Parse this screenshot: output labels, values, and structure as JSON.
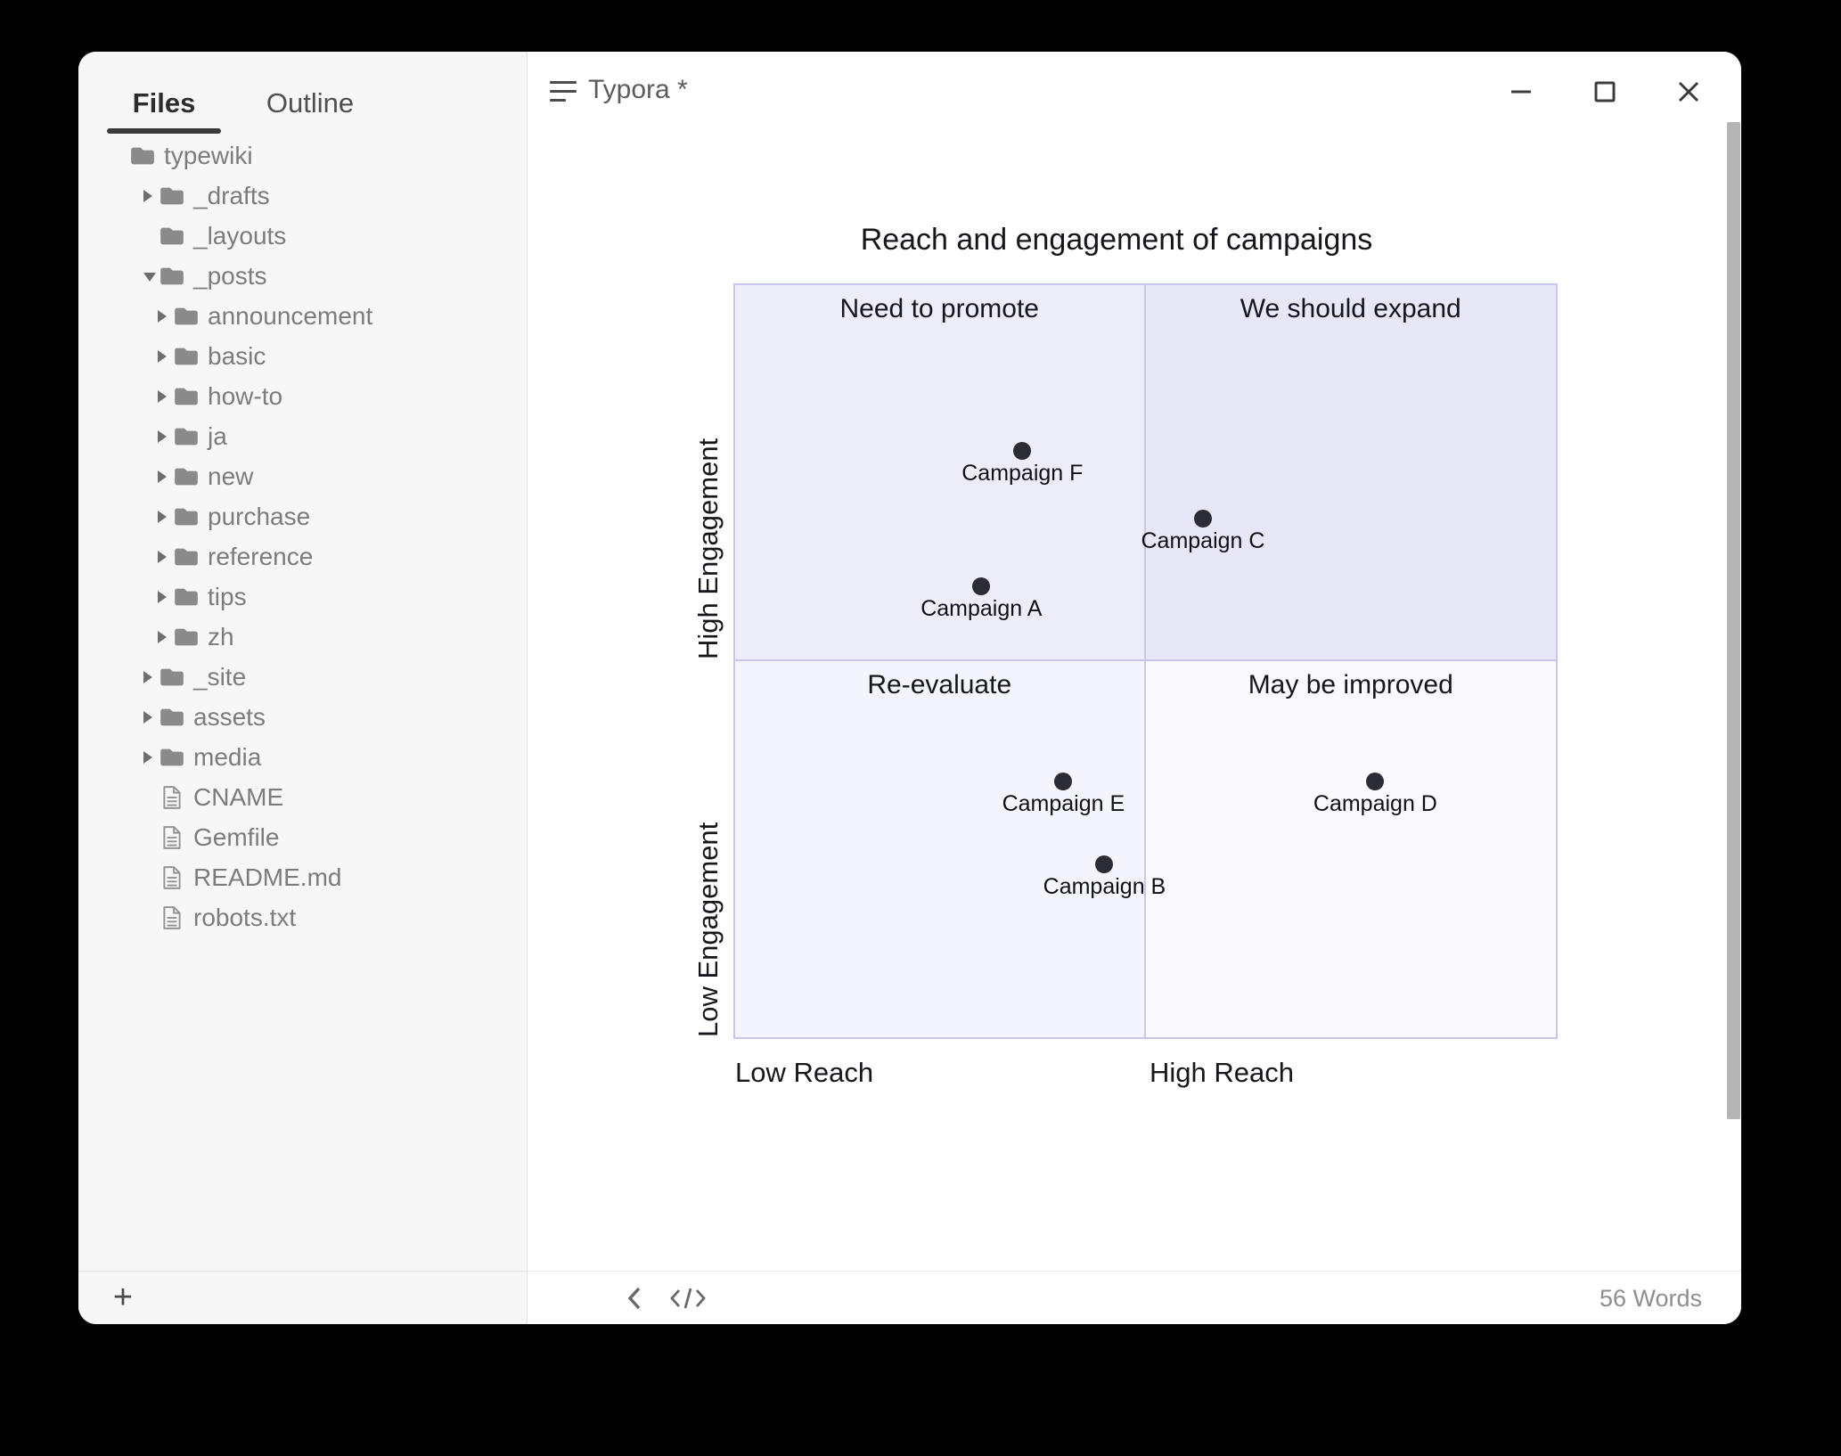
{
  "window": {
    "title": "Typora *",
    "controls": {
      "minimize": "minimize",
      "maximize": "maximize",
      "close": "close"
    }
  },
  "sidebar": {
    "tabs": [
      {
        "label": "Files",
        "active": true
      },
      {
        "label": "Outline",
        "active": false
      }
    ],
    "tree": [
      {
        "name": "typewiki",
        "type": "folder",
        "depth": 0,
        "arrow": "none"
      },
      {
        "name": "_drafts",
        "type": "folder",
        "depth": 1,
        "arrow": "collapsed"
      },
      {
        "name": "_layouts",
        "type": "folder",
        "depth": 1,
        "arrow": "none"
      },
      {
        "name": "_posts",
        "type": "folder",
        "depth": 1,
        "arrow": "expanded"
      },
      {
        "name": "announcement",
        "type": "folder",
        "depth": 2,
        "arrow": "collapsed"
      },
      {
        "name": "basic",
        "type": "folder",
        "depth": 2,
        "arrow": "collapsed"
      },
      {
        "name": "how-to",
        "type": "folder",
        "depth": 2,
        "arrow": "collapsed"
      },
      {
        "name": "ja",
        "type": "folder",
        "depth": 2,
        "arrow": "collapsed"
      },
      {
        "name": "new",
        "type": "folder",
        "depth": 2,
        "arrow": "collapsed"
      },
      {
        "name": "purchase",
        "type": "folder",
        "depth": 2,
        "arrow": "collapsed"
      },
      {
        "name": "reference",
        "type": "folder",
        "depth": 2,
        "arrow": "collapsed"
      },
      {
        "name": "tips",
        "type": "folder",
        "depth": 2,
        "arrow": "collapsed"
      },
      {
        "name": "zh",
        "type": "folder",
        "depth": 2,
        "arrow": "collapsed"
      },
      {
        "name": "_site",
        "type": "folder",
        "depth": 1,
        "arrow": "collapsed"
      },
      {
        "name": "assets",
        "type": "folder",
        "depth": 1,
        "arrow": "collapsed"
      },
      {
        "name": "media",
        "type": "folder",
        "depth": 1,
        "arrow": "collapsed"
      },
      {
        "name": "CNAME",
        "type": "file",
        "depth": 1,
        "arrow": "none"
      },
      {
        "name": "Gemfile",
        "type": "file",
        "depth": 1,
        "arrow": "none"
      },
      {
        "name": "README.md",
        "type": "file",
        "depth": 1,
        "arrow": "none"
      },
      {
        "name": "robots.txt",
        "type": "file",
        "depth": 1,
        "arrow": "none"
      }
    ],
    "add_button": "+"
  },
  "footer": {
    "word_count": "56 Words"
  },
  "icons": {
    "sidebar_toggle": "hamburger-lines",
    "back": "chevron-left",
    "source_code": "</>",
    "add": "+",
    "minimize": "—",
    "maximize": "□",
    "close": "×",
    "folder": "solid-folder",
    "file": "document-with-lines",
    "collapsed": "▸",
    "expanded": "▾"
  },
  "chart_data": {
    "type": "scatter",
    "variant": "quadrant-chart",
    "title": "Reach and engagement of campaigns",
    "x_axis": {
      "left": "Low Reach",
      "right": "High Reach"
    },
    "y_axis": {
      "bottom": "Low Engagement",
      "top": "High Engagement"
    },
    "quadrants": {
      "top_left": "Need to promote",
      "top_right": "We should expand",
      "bottom_left": "Re-evaluate",
      "bottom_right": "May be improved"
    },
    "points": [
      {
        "label": "Campaign A",
        "x": 0.3,
        "y": 0.6
      },
      {
        "label": "Campaign B",
        "x": 0.45,
        "y": 0.23
      },
      {
        "label": "Campaign C",
        "x": 0.57,
        "y": 0.69
      },
      {
        "label": "Campaign D",
        "x": 0.78,
        "y": 0.34
      },
      {
        "label": "Campaign E",
        "x": 0.4,
        "y": 0.34
      },
      {
        "label": "Campaign F",
        "x": 0.35,
        "y": 0.78
      }
    ],
    "range": {
      "x": [
        0,
        1
      ],
      "y": [
        0,
        1
      ]
    },
    "legend": "none",
    "grid": "quadrant-borders-only",
    "colors": {
      "quadrant_top_left": "#ededfa",
      "quadrant_top_right": "#e7e7f7",
      "quadrant_bottom_left": "#f4f4fc",
      "quadrant_bottom_right": "#fafafe",
      "border": "#c7c7ea",
      "point": "#2c2c34",
      "text": "#16161d"
    }
  }
}
